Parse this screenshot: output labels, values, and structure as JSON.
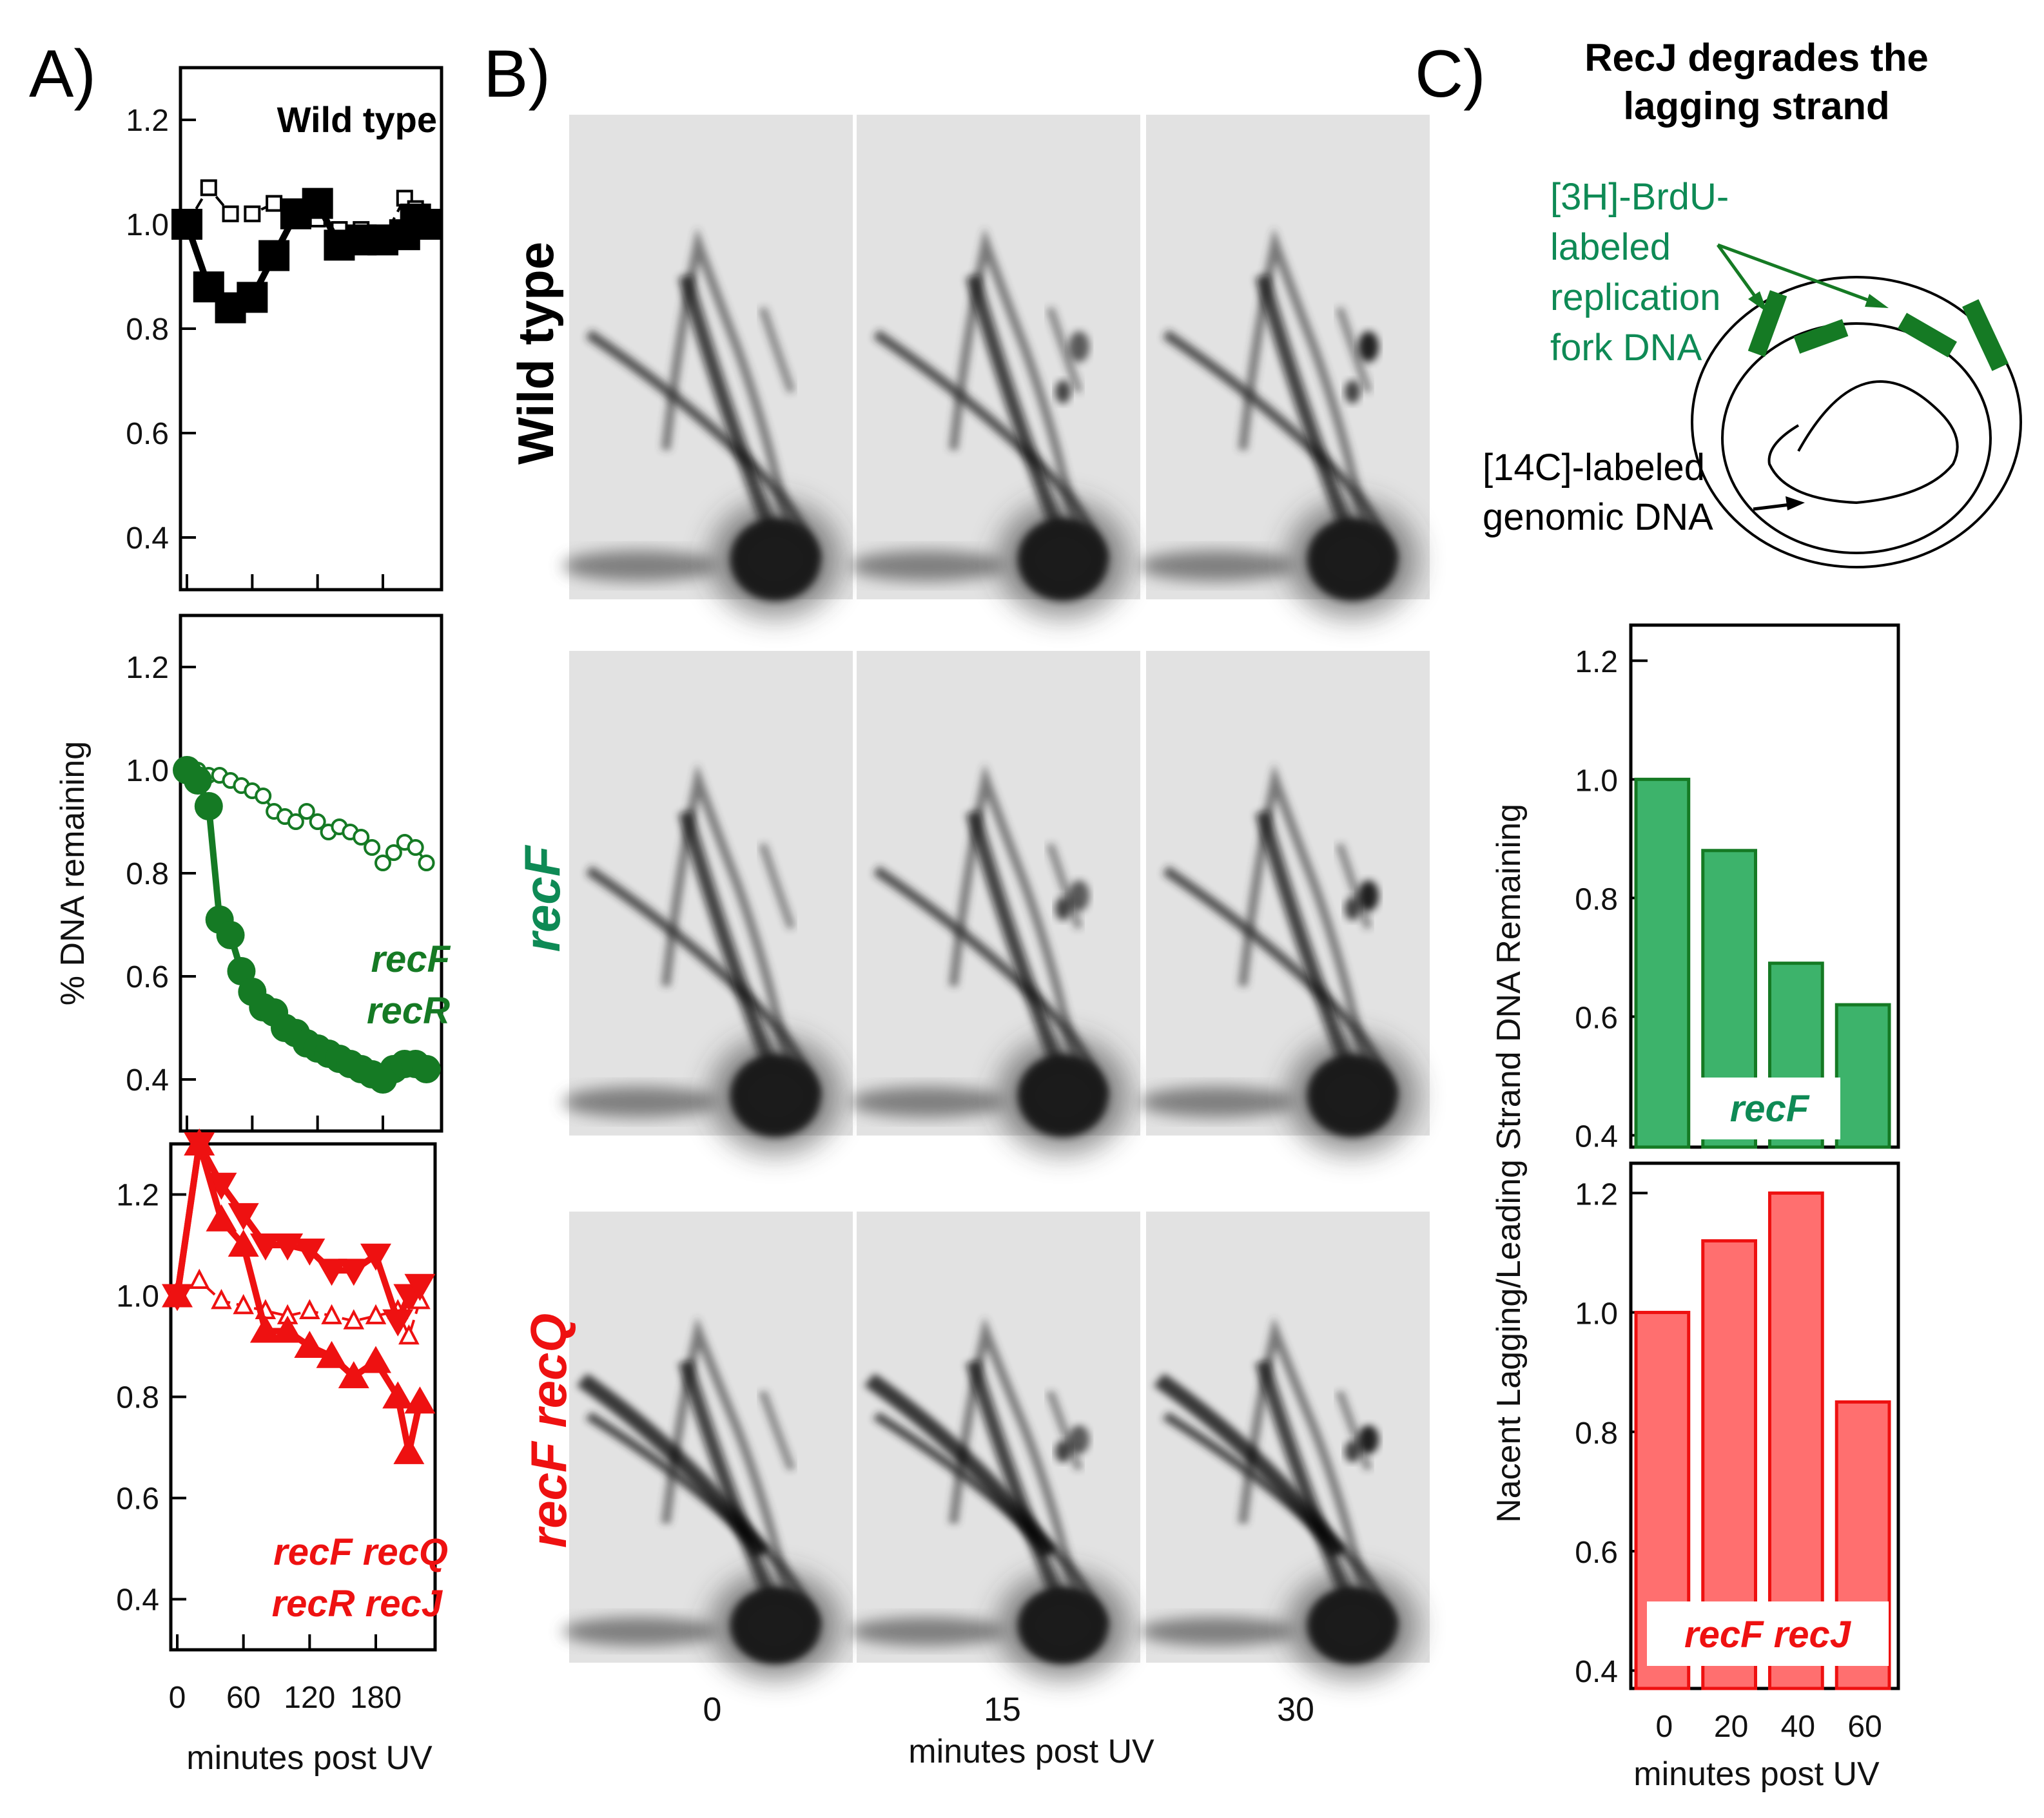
{
  "panels": {
    "a": "A)",
    "b": "B)",
    "c": "C)"
  },
  "colors": {
    "black": "#000000",
    "green": "#157a24",
    "red": "#ee1111",
    "green_bar": "#3db36b",
    "red_bar": "#ff6f6f",
    "label_green": "#0e8a55"
  },
  "panel_a": {
    "ylabel": "% DNA remaining",
    "xlabel": "minutes post UV",
    "x_ticks": [
      "0",
      "60",
      "120",
      "180"
    ]
  },
  "panel_b": {
    "row_labels": [
      "Wild type",
      "recF",
      "recF recQ"
    ],
    "col_labels": [
      "0",
      "15",
      "30"
    ],
    "xlabel": "minutes post UV"
  },
  "panel_c": {
    "title_line1": "RecJ degrades the",
    "title_line2": "lagging strand",
    "diagram_green_lines": [
      "[3H]-BrdU-",
      "labeled",
      "replication",
      "fork DNA"
    ],
    "diagram_black_lines": [
      "[14C]-labeled",
      "genomic DNA"
    ],
    "ylabel": "Nacent Lagging/Leading Strand DNA Remaining",
    "xlabel": "minutes post UV"
  },
  "chart_data": [
    {
      "id": "a-wildtype",
      "type": "line",
      "title": "Wild type",
      "xlim": [
        0,
        225
      ],
      "ylim": [
        0.3,
        1.3
      ],
      "y_ticks": [
        "0.4",
        "0.6",
        "0.8",
        "1.0",
        "1.2"
      ],
      "series": [
        {
          "name": "Wild type (open)",
          "style": "open-square-dashed",
          "color": "#000000",
          "x": [
            0,
            20,
            40,
            60,
            80,
            100,
            120,
            140,
            160,
            180,
            200,
            210,
            220
          ],
          "y": [
            1.0,
            1.07,
            1.02,
            1.02,
            1.04,
            1.03,
            1.01,
            0.99,
            0.99,
            0.97,
            1.05,
            1.03,
            1.0
          ]
        },
        {
          "name": "Wild type (filled)",
          "style": "filled-square-solid",
          "color": "#000000",
          "x": [
            0,
            20,
            40,
            60,
            80,
            100,
            120,
            140,
            160,
            180,
            200,
            210,
            220
          ],
          "y": [
            1.0,
            0.88,
            0.84,
            0.86,
            0.94,
            1.02,
            1.04,
            0.96,
            0.97,
            0.97,
            0.98,
            1.01,
            1.0
          ]
        }
      ]
    },
    {
      "id": "a-recF-recR",
      "type": "line",
      "xlim": [
        0,
        225
      ],
      "ylim": [
        0.3,
        1.3
      ],
      "y_ticks": [
        "0.4",
        "0.6",
        "0.8",
        "1.0",
        "1.2"
      ],
      "labels": [
        "recF",
        "recR"
      ],
      "series": [
        {
          "name": "recR",
          "style": "open-circle-dashed",
          "color": "#157a24",
          "x": [
            0,
            10,
            20,
            30,
            40,
            50,
            60,
            70,
            80,
            90,
            100,
            110,
            120,
            130,
            140,
            150,
            160,
            170,
            180,
            190,
            200,
            210,
            220
          ],
          "y": [
            1.0,
            1.0,
            0.99,
            0.99,
            0.98,
            0.97,
            0.96,
            0.95,
            0.92,
            0.91,
            0.9,
            0.92,
            0.9,
            0.88,
            0.89,
            0.88,
            0.87,
            0.85,
            0.82,
            0.84,
            0.86,
            0.85,
            0.82
          ]
        },
        {
          "name": "recF",
          "style": "filled-circle-solid",
          "color": "#157a24",
          "x": [
            0,
            10,
            20,
            30,
            40,
            50,
            60,
            70,
            80,
            90,
            100,
            110,
            120,
            130,
            140,
            150,
            160,
            170,
            180,
            190,
            200,
            210,
            220
          ],
          "y": [
            1.0,
            0.98,
            0.93,
            0.71,
            0.68,
            0.61,
            0.57,
            0.54,
            0.53,
            0.5,
            0.49,
            0.47,
            0.46,
            0.45,
            0.44,
            0.43,
            0.42,
            0.41,
            0.4,
            0.42,
            0.43,
            0.43,
            0.42
          ]
        }
      ]
    },
    {
      "id": "a-recFrecQ-recRrecJ",
      "type": "line",
      "xlim": [
        0,
        225
      ],
      "ylim": [
        0.3,
        1.3
      ],
      "y_ticks": [
        "0.4",
        "0.6",
        "0.8",
        "1.0",
        "1.2"
      ],
      "labels": [
        "recF recQ",
        "recR recJ"
      ],
      "series": [
        {
          "name": "recR recJ (open)",
          "style": "open-triangle-dashed",
          "color": "#ee1111",
          "x": [
            0,
            20,
            40,
            60,
            80,
            100,
            120,
            140,
            160,
            180,
            200,
            210,
            220
          ],
          "y": [
            1.0,
            1.03,
            0.99,
            0.98,
            0.97,
            0.96,
            0.97,
            0.96,
            0.95,
            0.96,
            0.97,
            0.92,
            0.99
          ]
        },
        {
          "name": "recF recQ",
          "style": "filled-triangle-down-solid",
          "color": "#ee1111",
          "x": [
            0,
            20,
            40,
            60,
            80,
            100,
            120,
            140,
            160,
            180,
            200,
            210,
            220
          ],
          "y": [
            1.0,
            1.3,
            1.22,
            1.16,
            1.1,
            1.1,
            1.09,
            1.05,
            1.05,
            1.08,
            0.95,
            1.0,
            1.02
          ]
        },
        {
          "name": "recR recJ",
          "style": "filled-triangle-up-solid",
          "color": "#ee1111",
          "x": [
            0,
            20,
            40,
            60,
            80,
            100,
            120,
            140,
            160,
            180,
            200,
            210,
            220
          ],
          "y": [
            1.0,
            1.3,
            1.15,
            1.1,
            0.93,
            0.93,
            0.9,
            0.88,
            0.84,
            0.87,
            0.8,
            0.69,
            0.79
          ]
        }
      ]
    },
    {
      "id": "c-recF",
      "type": "bar",
      "label": "recF",
      "categories": [
        "0",
        "20",
        "40",
        "60"
      ],
      "values": [
        1.0,
        0.88,
        0.69,
        0.62
      ],
      "ylim": [
        0.38,
        1.26
      ],
      "y_ticks": [
        "0.4",
        "0.6",
        "0.8",
        "1.0",
        "1.2"
      ],
      "color": "#3db36b"
    },
    {
      "id": "c-recFrecJ",
      "type": "bar",
      "label": "recF recJ",
      "categories": [
        "0",
        "20",
        "40",
        "60"
      ],
      "values": [
        1.0,
        1.12,
        1.2,
        0.85
      ],
      "ylim": [
        0.37,
        1.25
      ],
      "y_ticks": [
        "0.4",
        "0.6",
        "0.8",
        "1.0",
        "1.2"
      ],
      "x_ticks": [
        "0",
        "20",
        "40",
        "60"
      ],
      "color": "#ff6f6f"
    }
  ]
}
